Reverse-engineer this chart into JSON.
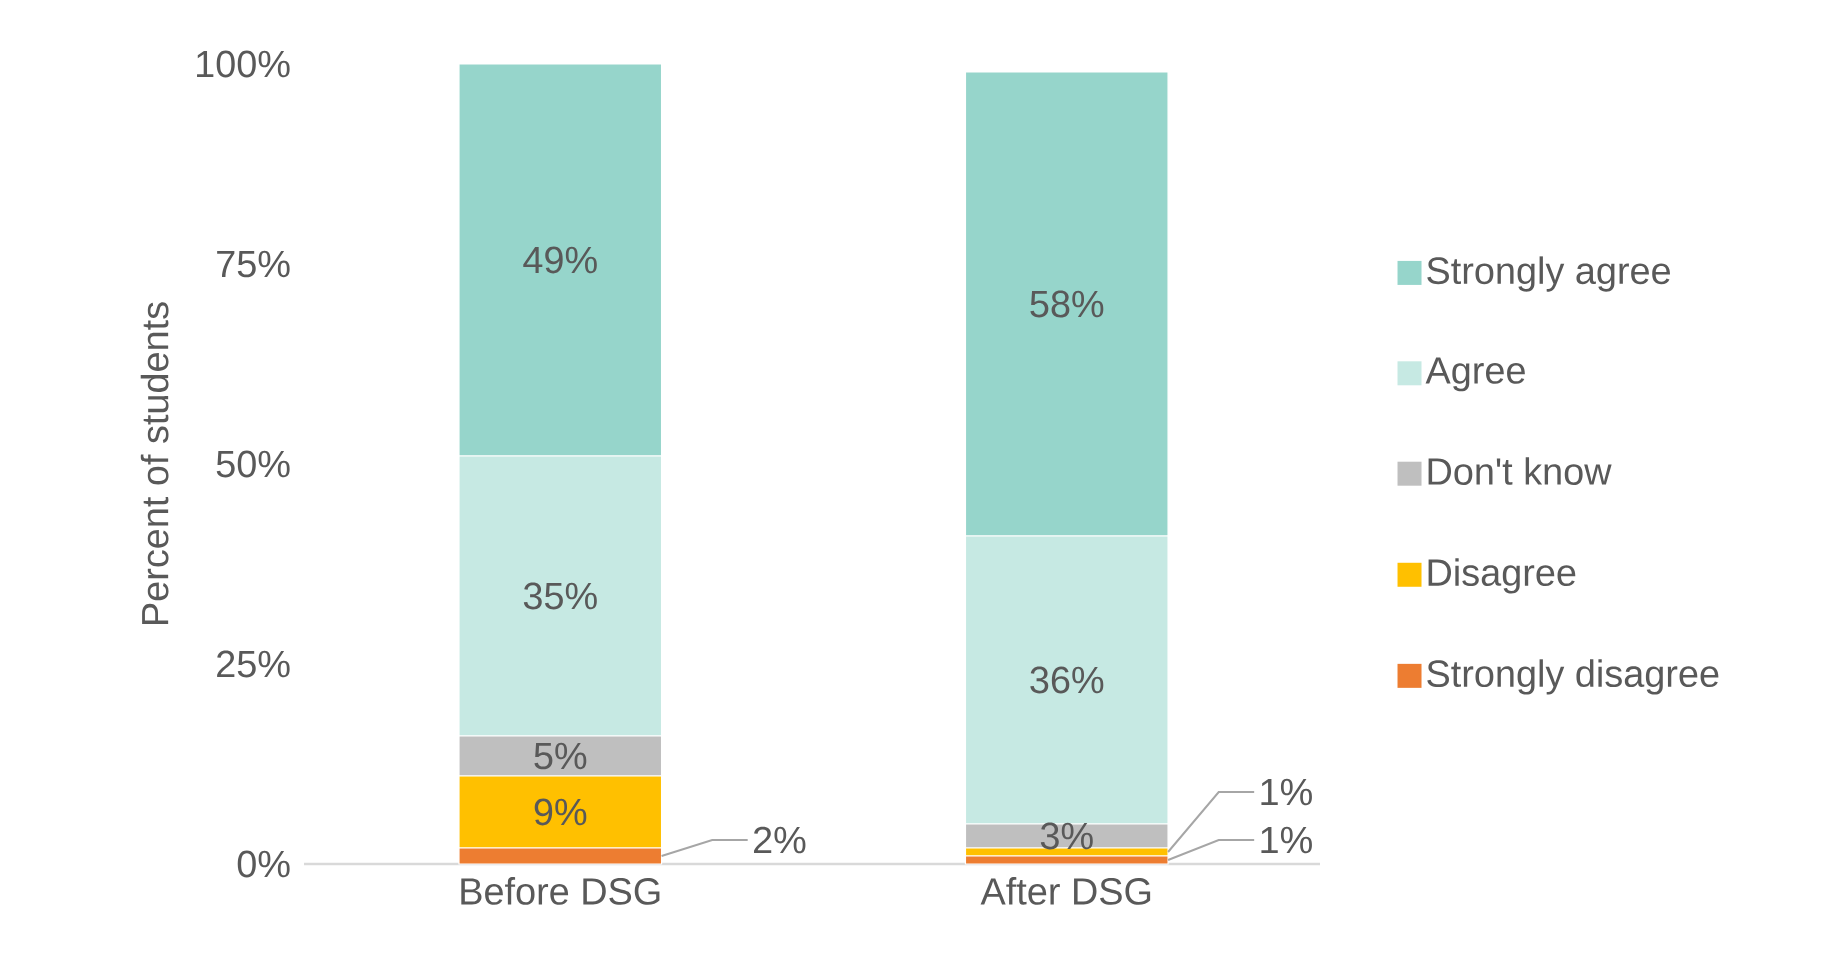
{
  "chart_data": {
    "type": "bar",
    "stacked": true,
    "ylabel": "Percent of students",
    "categories": [
      "Before DSG",
      "After DSG"
    ],
    "series": [
      {
        "name": "Strongly disagree",
        "color": "#ed7d31",
        "values": [
          2,
          1
        ],
        "value_labels": [
          "2%",
          "1%"
        ]
      },
      {
        "name": "Disagree",
        "color": "#ffc000",
        "values": [
          9,
          1
        ],
        "value_labels": [
          "9%",
          "1%"
        ]
      },
      {
        "name": "Don't know",
        "color": "#bfbfbf",
        "values": [
          5,
          3
        ],
        "value_labels": [
          "5%",
          "3%"
        ]
      },
      {
        "name": "Agree",
        "color": "#c6e9e3",
        "values": [
          35,
          36
        ],
        "value_labels": [
          "35%",
          "36%"
        ]
      },
      {
        "name": "Strongly agree",
        "color": "#96d5cb",
        "values": [
          49,
          58
        ],
        "value_labels": [
          "49%",
          "58%"
        ]
      }
    ],
    "ylim": [
      0,
      100
    ],
    "yticks": [
      {
        "value": 0,
        "label": "0%"
      },
      {
        "value": 25,
        "label": "25%"
      },
      {
        "value": 50,
        "label": "50%"
      },
      {
        "value": 75,
        "label": "75%"
      },
      {
        "value": 100,
        "label": "100%"
      }
    ],
    "legend": "right",
    "grid": false
  }
}
